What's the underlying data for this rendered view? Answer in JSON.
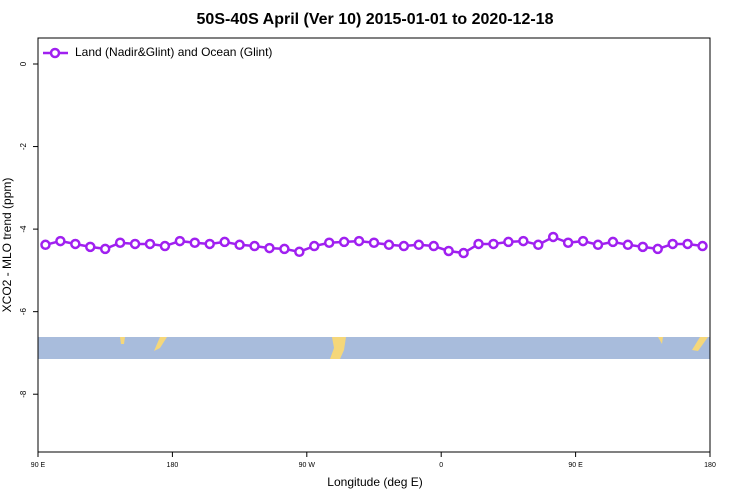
{
  "chart_data": {
    "type": "line",
    "title": "50S-40S April (Ver 10)   2015-01-01 to 2020-12-18",
    "x_label": "Longitude (deg E)",
    "y_label": "XCO2 - MLO trend (ppm)",
    "x": [
      95,
      105,
      115,
      125,
      135,
      145,
      155,
      165,
      175,
      185,
      195,
      205,
      215,
      225,
      235,
      245,
      255,
      265,
      275,
      285,
      295,
      305,
      315,
      325,
      335,
      345,
      355,
      365,
      375,
      385,
      395,
      405,
      415,
      425,
      435,
      445,
      455,
      465,
      475,
      485,
      495,
      505,
      515,
      525,
      535
    ],
    "series": [
      {
        "name": "Land (Nadir&Glint) and Ocean (Glint)",
        "color": "#a020f0",
        "values": [
          -4.38,
          -4.29,
          -4.36,
          -4.43,
          -4.48,
          -4.33,
          -4.36,
          -4.36,
          -4.41,
          -4.29,
          -4.33,
          -4.36,
          -4.31,
          -4.38,
          -4.41,
          -4.46,
          -4.48,
          -4.55,
          -4.41,
          -4.33,
          -4.31,
          -4.29,
          -4.33,
          -4.38,
          -4.41,
          -4.38,
          -4.41,
          -4.53,
          -4.58,
          -4.36,
          -4.36,
          -4.31,
          -4.29,
          -4.38,
          -4.19,
          -4.33,
          -4.29,
          -4.38,
          -4.31,
          -4.38,
          -4.43,
          -4.48,
          -4.36,
          -4.36,
          -4.41
        ]
      }
    ],
    "xlim": [
      90,
      540
    ],
    "xticks": [
      {
        "value": 90,
        "label": "90 E"
      },
      {
        "value": 180,
        "label": "180"
      },
      {
        "value": 270,
        "label": "90 W"
      },
      {
        "value": 360,
        "label": "0"
      },
      {
        "value": 450,
        "label": "90 E"
      },
      {
        "value": 540,
        "label": "180"
      }
    ],
    "ylim": [
      -9.4,
      0.63
    ],
    "yticks": [
      0,
      -2,
      -4,
      -6,
      -8
    ],
    "legend": "top-left"
  }
}
